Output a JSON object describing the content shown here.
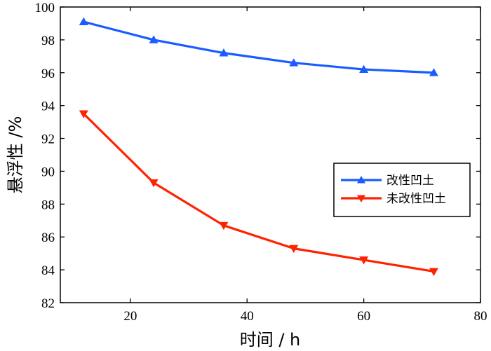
{
  "chart_data": {
    "type": "line",
    "xlabel": "时间 / h",
    "ylabel": "悬浮性 /%",
    "xlim": [
      8,
      80
    ],
    "ylim": [
      82,
      100
    ],
    "xticks": [
      20,
      40,
      60,
      80
    ],
    "yticks": [
      82,
      84,
      86,
      88,
      90,
      92,
      94,
      96,
      98,
      100
    ],
    "grid": false,
    "legend_position": "middle-right",
    "x": [
      12,
      24,
      36,
      48,
      60,
      72
    ],
    "series": [
      {
        "name": "改性凹土",
        "values": [
          99.1,
          98.0,
          97.2,
          96.6,
          96.2,
          96.0
        ],
        "color": "#1a5cff",
        "marker": "triangle-up"
      },
      {
        "name": "未改性凹土",
        "values": [
          93.5,
          89.3,
          86.7,
          85.3,
          84.6,
          83.9
        ],
        "color": "#ff2200",
        "marker": "triangle-down"
      }
    ]
  }
}
